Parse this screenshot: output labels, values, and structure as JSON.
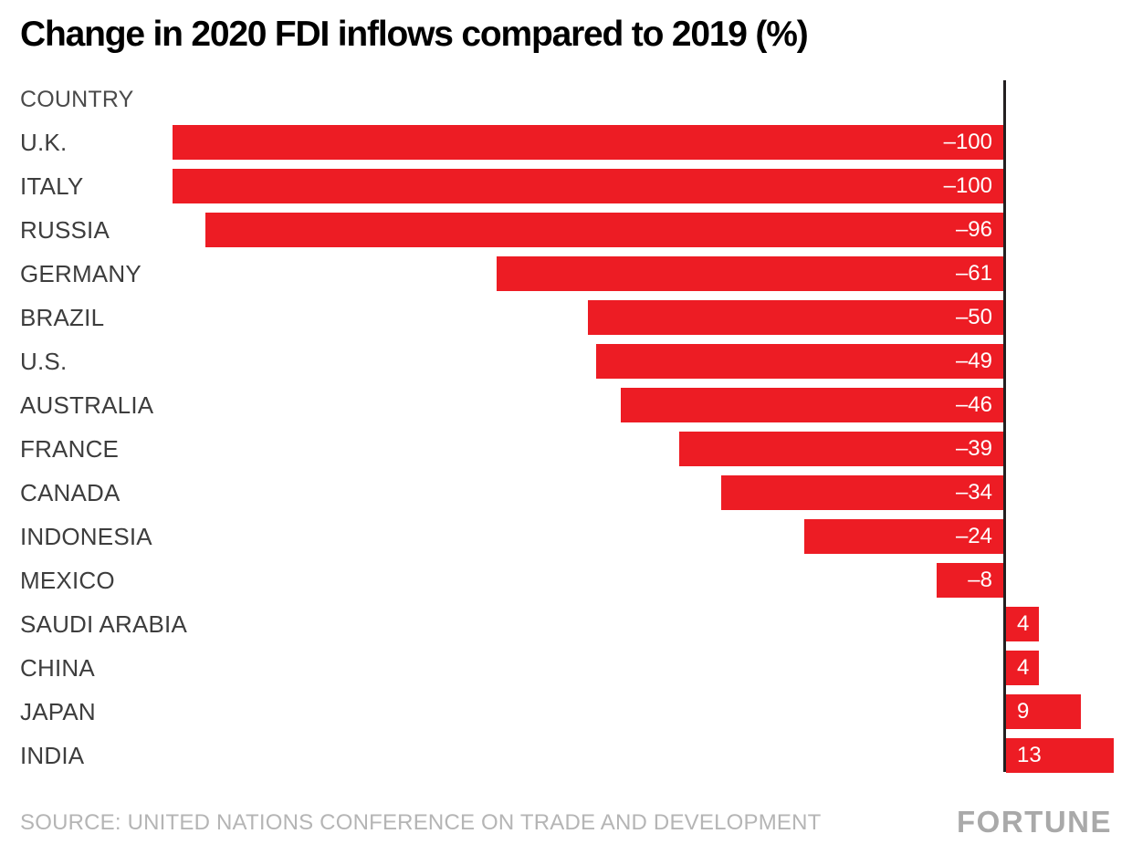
{
  "title": "Change in 2020 FDI inflows compared to 2019 (%)",
  "column_header": "COUNTRY",
  "source": "SOURCE: UNITED NATIONS CONFERENCE ON TRADE AND DEVELOPMENT",
  "brand": "FORTUNE",
  "colors": {
    "bar": "#ed1c24",
    "axis": "#231f20",
    "title": "#000000",
    "category_label": "#3d3d3d",
    "column_header": "#4a4a4a",
    "value_label": "#ffffff",
    "source": "#b5b5b5",
    "brand": "#a9a9a9",
    "background": "#ffffff"
  },
  "chart_data": {
    "type": "bar",
    "orientation": "horizontal",
    "title": "Change in 2020 FDI inflows compared to 2019 (%)",
    "categories": [
      "U.K.",
      "ITALY",
      "RUSSIA",
      "GERMANY",
      "BRAZIL",
      "U.S.",
      "AUSTRALIA",
      "FRANCE",
      "CANADA",
      "INDONESIA",
      "MEXICO",
      "SAUDI ARABIA",
      "CHINA",
      "JAPAN",
      "INDIA"
    ],
    "values": [
      -100,
      -100,
      -96,
      -61,
      -50,
      -49,
      -46,
      -39,
      -34,
      -24,
      -8,
      4,
      4,
      9,
      13
    ],
    "value_labels": [
      "–100",
      "–100",
      "–96",
      "–61",
      "–50",
      "–49",
      "–46",
      "–39",
      "–34",
      "–24",
      "–8",
      "4",
      "4",
      "9",
      "13"
    ],
    "unit": "%",
    "xlabel": "",
    "ylabel": "COUNTRY",
    "xlim": [
      -100,
      13
    ],
    "grid": false,
    "legend": false,
    "bar_color": "#ed1c24",
    "value_label_placement": "negative values: inside bar at right end; positive values: inside bar at left end"
  }
}
